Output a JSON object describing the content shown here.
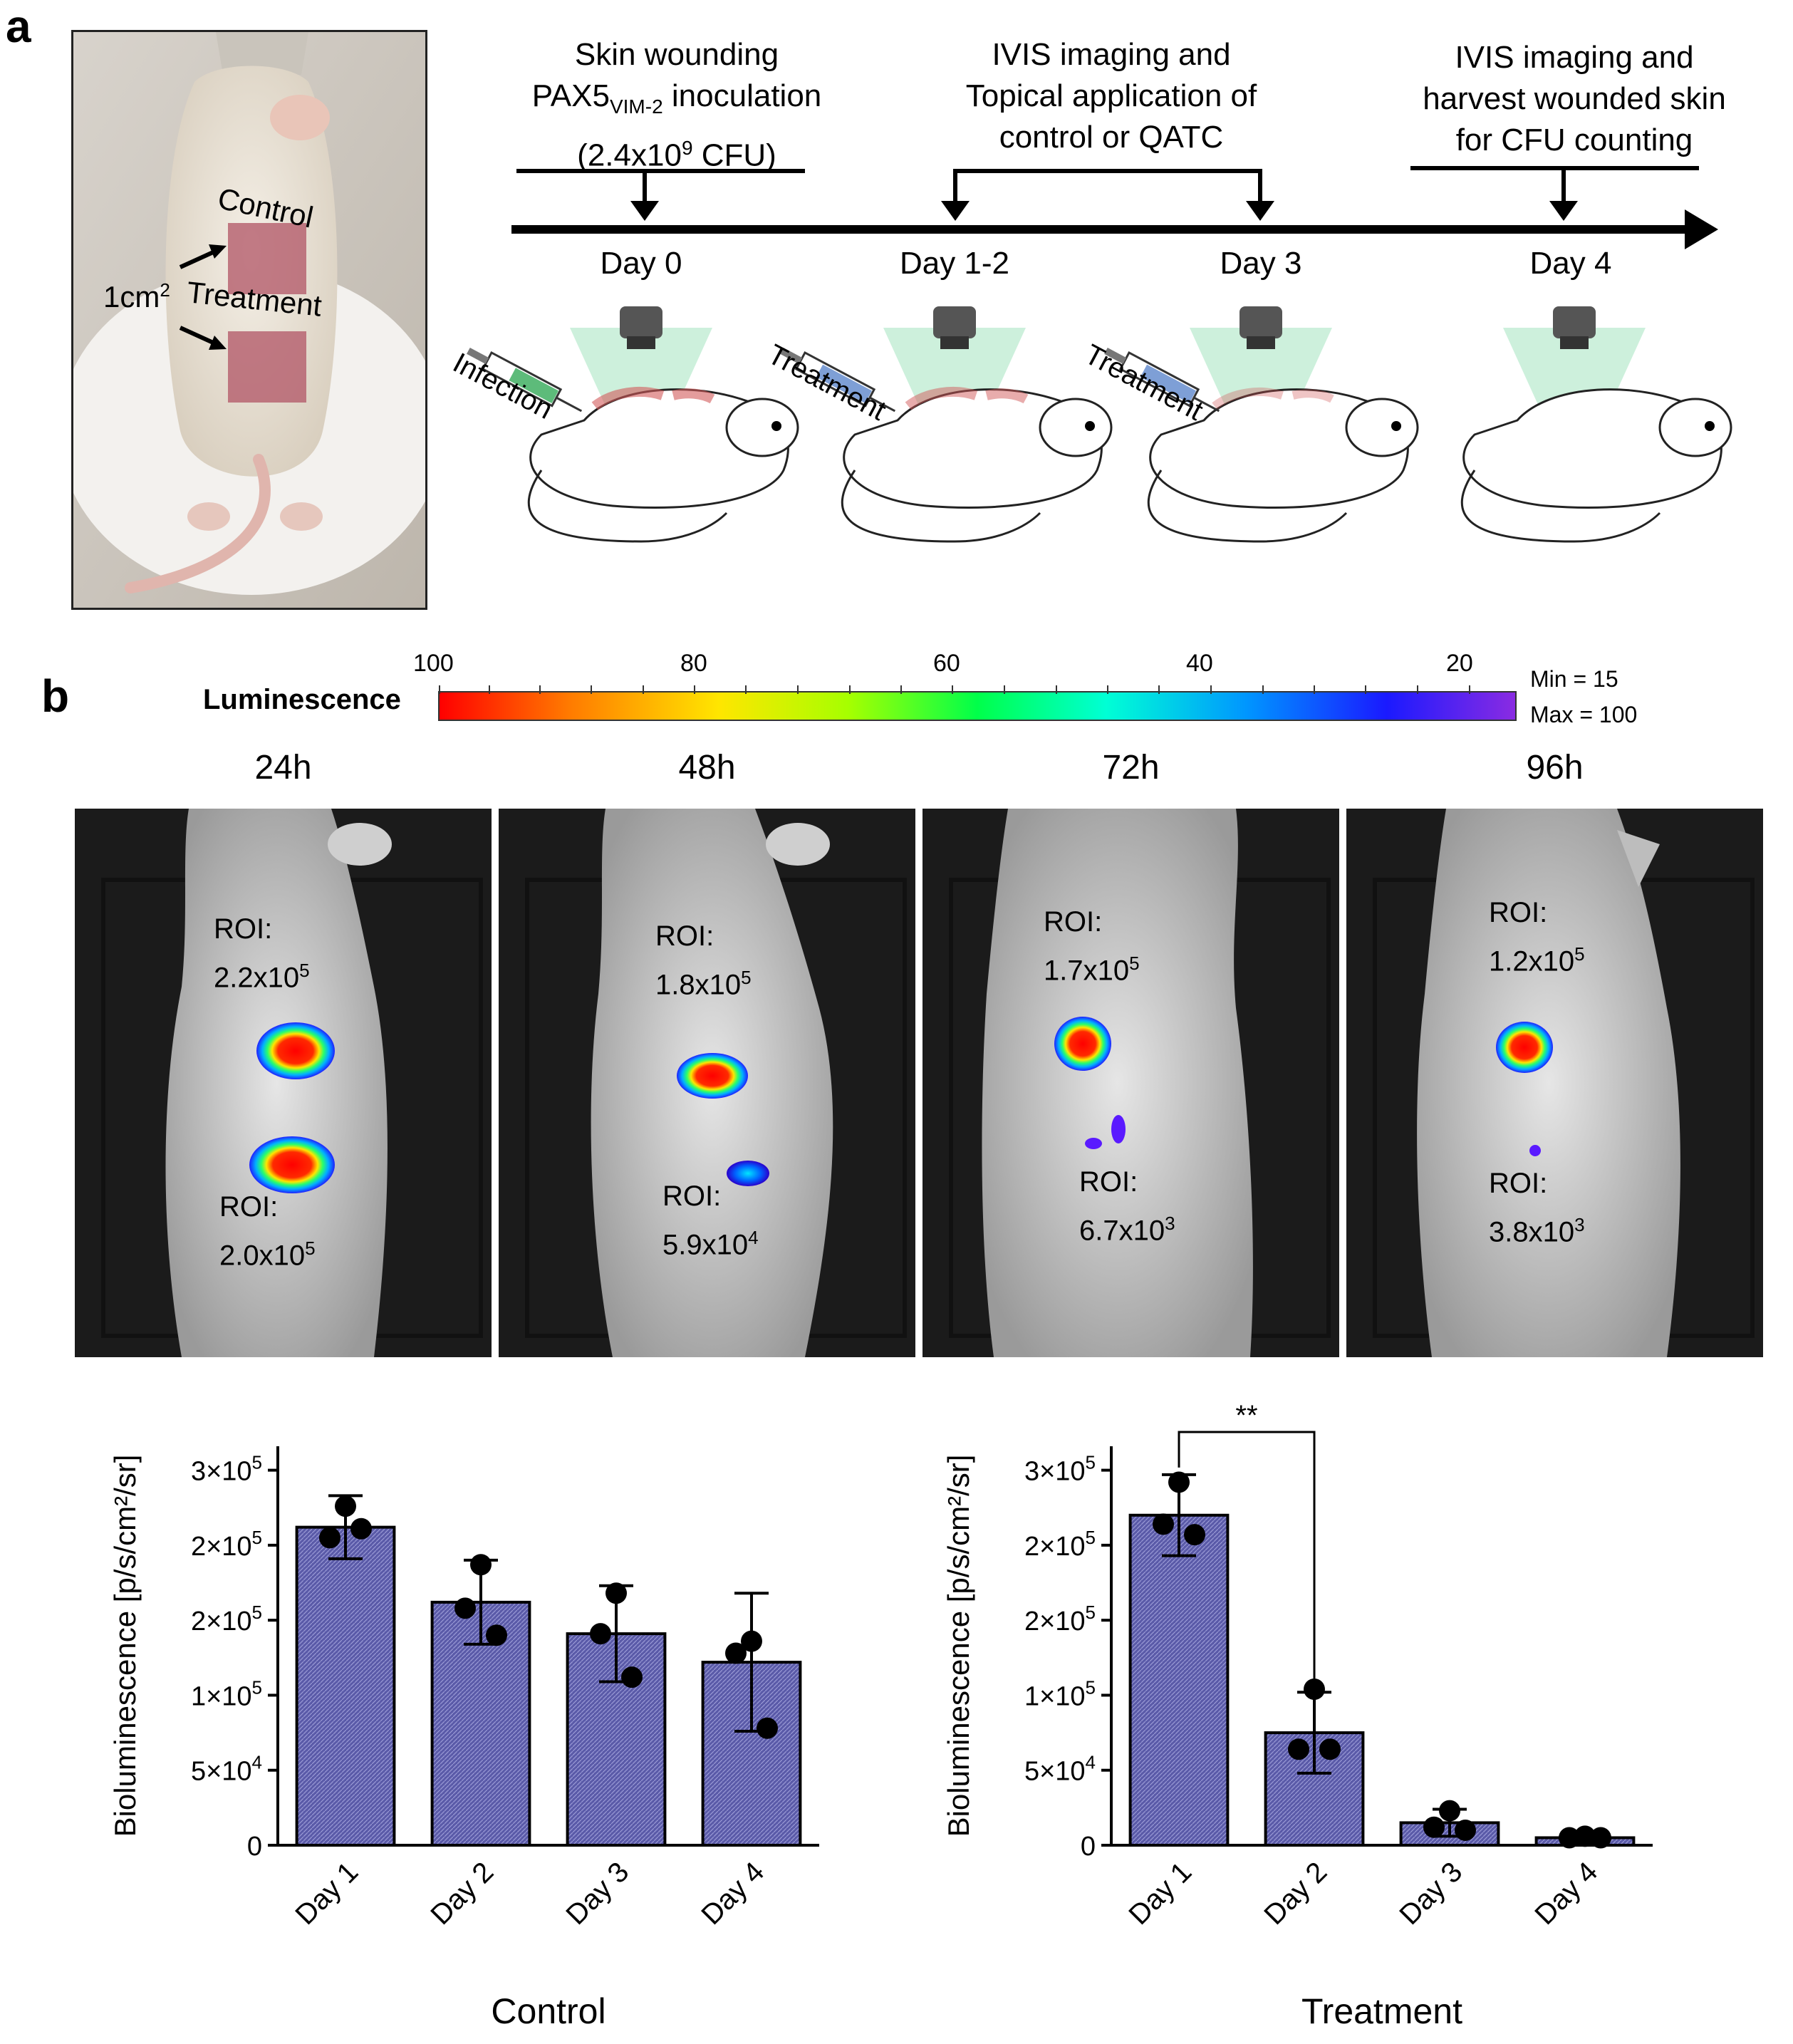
{
  "panel_a": {
    "letter": "a",
    "photo_labels": {
      "control": "Control",
      "area": "1cm",
      "area_sup": "2",
      "treatment": "Treatment"
    },
    "timeline": {
      "step1": {
        "line1": "Skin wounding",
        "line2_main": "PAX5",
        "line2_sub": "VIM-2",
        "line2_rest": " inoculation",
        "line3_pre": "(2.4x10",
        "line3_sup": "9",
        "line3_post": " CFU)"
      },
      "step2": {
        "line1": "IVIS imaging and",
        "line2": "Topical application of",
        "line3": "control or QATC"
      },
      "step3": {
        "line1": "IVIS imaging and",
        "line2": "harvest wounded skin",
        "line3": "for CFU counting"
      },
      "days": [
        "Day 0",
        "Day 1-2",
        "Day 3",
        "Day 4"
      ],
      "syringe_labels": [
        "Infection",
        "Treatment",
        "Treatment"
      ]
    },
    "colors": {
      "infection_syringe": "#5dbb7a",
      "treatment_syringe": "#7e9fd6",
      "light_cone": "#6fd49a",
      "wound": "#d25a5a"
    }
  },
  "panel_b": {
    "letter": "b",
    "colorbar": {
      "label": "Luminescence",
      "ticks": [
        "100",
        "80",
        "60",
        "40",
        "20"
      ],
      "min_text": "Min = 15",
      "max_text": "Max = 100"
    },
    "images": [
      {
        "time": "24h",
        "roi_top_label": "ROI:",
        "roi_top_base": "2.2x10",
        "roi_top_exp": "5",
        "roi_bottom_label": "ROI:",
        "roi_bottom_base": "2.0x10",
        "roi_bottom_exp": "5"
      },
      {
        "time": "48h",
        "roi_top_label": "ROI:",
        "roi_top_base": "1.8x10",
        "roi_top_exp": "5",
        "roi_bottom_label": "ROI:",
        "roi_bottom_base": "5.9x10",
        "roi_bottom_exp": "4"
      },
      {
        "time": "72h",
        "roi_top_label": "ROI:",
        "roi_top_base": "1.7x10",
        "roi_top_exp": "5",
        "roi_bottom_label": "ROI:",
        "roi_bottom_base": "6.7x10",
        "roi_bottom_exp": "3"
      },
      {
        "time": "96h",
        "roi_top_label": "ROI:",
        "roi_top_base": "1.2x10",
        "roi_top_exp": "5",
        "roi_bottom_label": "ROI:",
        "roi_bottom_base": "3.8x10",
        "roi_bottom_exp": "3"
      }
    ]
  },
  "chart_data": [
    {
      "type": "bar",
      "title": "Control",
      "ylabel": "Bioluminescence [p/s/cm²/sr]",
      "xlabel": "Control",
      "categories": [
        "Day 1",
        "Day 2",
        "Day 3",
        "Day 4"
      ],
      "values": [
        212000,
        162000,
        141000,
        122000
      ],
      "errors": [
        21000,
        28000,
        32000,
        46000
      ],
      "points": [
        [
          226000,
          205000,
          211000
        ],
        [
          187000,
          158000,
          140000
        ],
        [
          168000,
          141000,
          112000
        ],
        [
          136000,
          128000,
          78000
        ]
      ],
      "ylim": [
        0,
        250000
      ],
      "yticks": [
        {
          "value": 0,
          "base": "0",
          "exp": ""
        },
        {
          "value": 50000,
          "base": "5×10",
          "exp": "4"
        },
        {
          "value": 100000,
          "base": "1×10",
          "exp": "5"
        },
        {
          "value": 150000,
          "base": "2×10",
          "exp": "5"
        },
        {
          "value": 200000,
          "base": "2×10",
          "exp": "5"
        },
        {
          "value": 250000,
          "base": "3×10",
          "exp": "5"
        }
      ],
      "bar_color": "#5a5aa8"
    },
    {
      "type": "bar",
      "title": "Treatment",
      "ylabel": "Bioluminescence [p/s/cm²/sr]",
      "xlabel": "Treatment",
      "categories": [
        "Day 1",
        "Day 2",
        "Day 3",
        "Day 4"
      ],
      "values": [
        220000,
        75000,
        15000,
        5000
      ],
      "errors": [
        27000,
        27000,
        9000,
        2000
      ],
      "points": [
        [
          242000,
          214000,
          207000
        ],
        [
          104000,
          64000,
          64000
        ],
        [
          23000,
          12000,
          10000
        ],
        [
          6000,
          5000,
          5000
        ]
      ],
      "ylim": [
        0,
        250000
      ],
      "yticks": [
        {
          "value": 0,
          "base": "0",
          "exp": ""
        },
        {
          "value": 50000,
          "base": "5×10",
          "exp": "4"
        },
        {
          "value": 100000,
          "base": "1×10",
          "exp": "5"
        },
        {
          "value": 150000,
          "base": "2×10",
          "exp": "5"
        },
        {
          "value": 200000,
          "base": "2×10",
          "exp": "5"
        },
        {
          "value": 250000,
          "base": "3×10",
          "exp": "5"
        }
      ],
      "significance": {
        "from": "Day 1",
        "to": "Day 2",
        "label": "**"
      },
      "bar_color": "#5a5aa8"
    }
  ]
}
